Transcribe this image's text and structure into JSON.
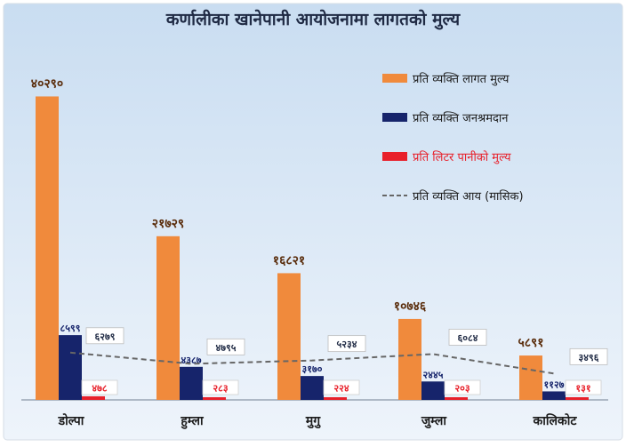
{
  "chart_data": {
    "type": "bar",
    "title": "कर्णालीका खानेपानी आयोजनामा लागतको मुल्य",
    "categories": [
      "डोल्पा",
      "हुम्ला",
      "मुगु",
      "जुम्ला",
      "कालिकोट"
    ],
    "series": [
      {
        "name": "प्रति व्यक्ति लागत मुल्य",
        "color": "#f08a3c",
        "values": [
          40290,
          21729,
          16821,
          10746,
          5891
        ],
        "labels": [
          "४०२९०",
          "२१७२९",
          "१६८२१",
          "१०७४६",
          "५८९१"
        ]
      },
      {
        "name": "प्रति व्यक्ति जनश्रमदान",
        "color": "#16246b",
        "values": [
          8599,
          4387,
          3170,
          2445,
          1127
        ],
        "labels": [
          "८५९९",
          "४३८७",
          "३१७०",
          "२४४५",
          "११२७"
        ]
      },
      {
        "name": "प्रति लिटर पानीको मुल्य",
        "color": "#e8202a",
        "values": [
          478,
          283,
          224,
          203,
          131
        ],
        "labels": [
          "४७८",
          "२८३",
          "२२४",
          "२०३",
          "१३१"
        ]
      },
      {
        "name": "प्रति व्यक्ति आय (मासिक)",
        "kind": "dashed-line",
        "color": "#666666",
        "values": [
          6279,
          4795,
          5234,
          6084,
          3496
        ],
        "labels": [
          "६२७९",
          "४७९५",
          "५२३४",
          "६०८४",
          "३४९६"
        ]
      }
    ],
    "ylim": [
      0,
      42000
    ],
    "grid": false,
    "legend": "top-right"
  },
  "colors": {
    "background_top": "#c9ddf1",
    "background_bottom": "#eef4fb",
    "axis": "#9aa6b4"
  }
}
